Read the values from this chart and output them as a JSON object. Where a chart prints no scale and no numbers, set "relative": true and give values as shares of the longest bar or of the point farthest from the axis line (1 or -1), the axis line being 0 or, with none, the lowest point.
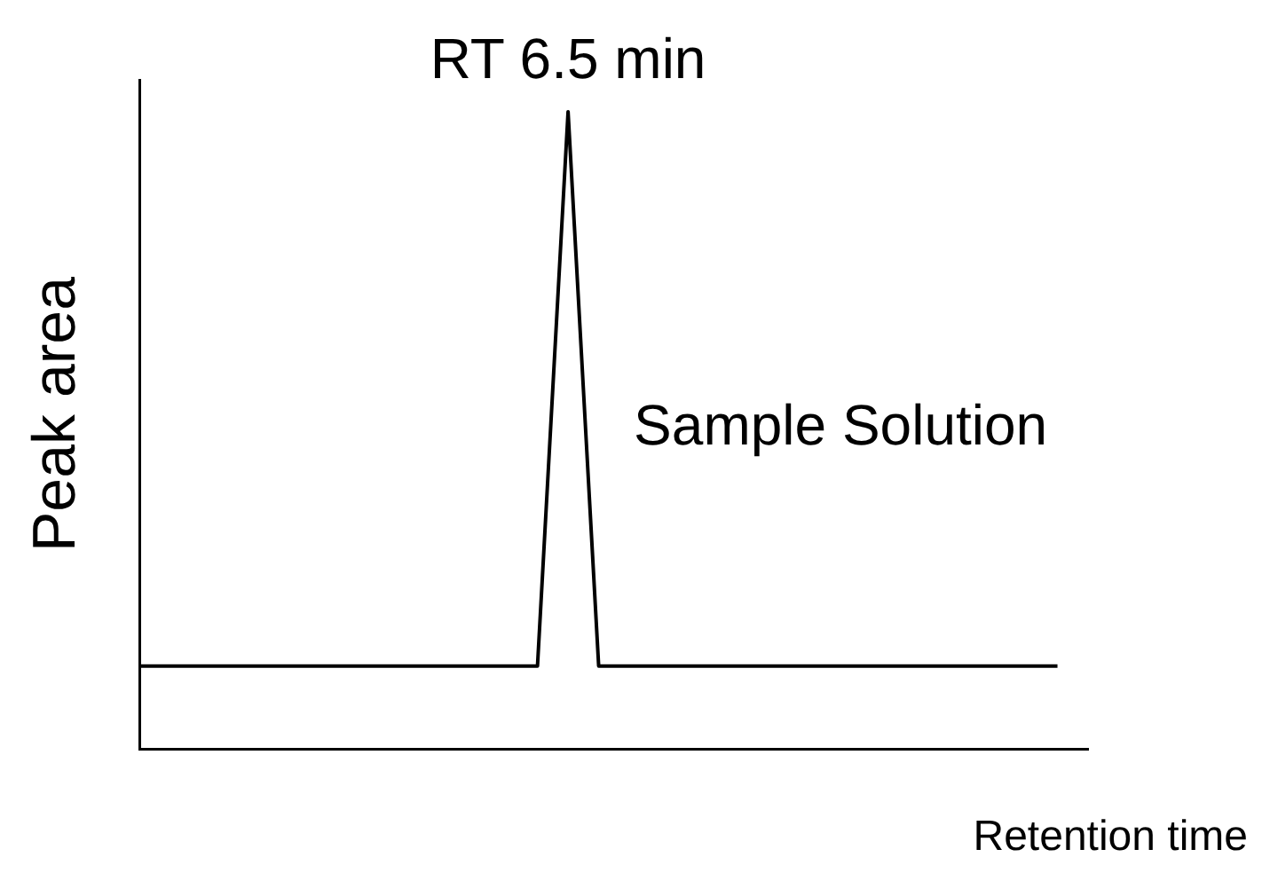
{
  "chart_data": {
    "type": "line",
    "relative": true,
    "ylabel": "Peak area",
    "xlabel": "Retention time",
    "categories": [
      null,
      null,
      null,
      null,
      null,
      null,
      null,
      null,
      null,
      null,
      null,
      null,
      null,
      null,
      null,
      null,
      null,
      null,
      null,
      null,
      null,
      null,
      null,
      null,
      null,
      null,
      null,
      null,
      null,
      null,
      null,
      null
    ],
    "annotations": [
      {
        "text": "RT 6.5 min",
        "y": 1
      }
    ],
    "series": [
      {
        "name": "Sample Solution",
        "color": "#000000",
        "values": [
          0.13,
          0.13,
          0.13,
          0.13,
          0.13,
          0.13,
          0.13,
          0.13,
          0.13,
          0.13,
          0.13,
          0.13,
          0.13,
          0.13,
          1,
          0.13,
          0.13,
          0.13,
          0.13,
          0.13,
          0.13,
          0.13,
          0.13,
          0.13,
          0.13,
          0.13,
          0.13,
          0.13,
          0.13,
          0.13,
          0.13,
          null
        ]
      }
    ],
    "legend": false
  }
}
